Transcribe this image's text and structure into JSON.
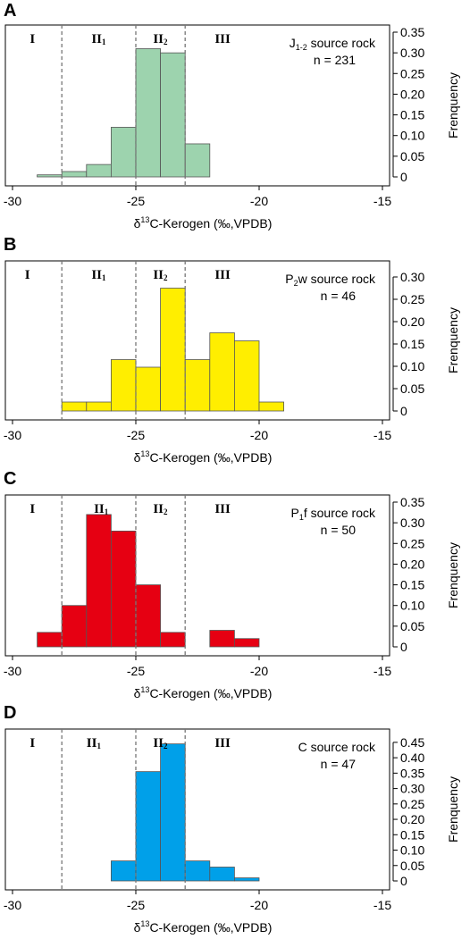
{
  "chart_data": [
    {
      "panel": "A",
      "type": "bar",
      "label_main": "J",
      "label_sub": "1-2",
      "label_rest": " source rock",
      "n_label": "n = 231",
      "color": "#9dd3ae",
      "bin_edges": [
        -29,
        -28,
        -27,
        -26,
        -25,
        -24,
        -23,
        -22
      ],
      "values": [
        0.005,
        0.013,
        0.03,
        0.12,
        0.31,
        0.3,
        0.08
      ],
      "xlim": [
        -30,
        -15
      ],
      "xticks": [
        -30,
        -25,
        -20,
        -15
      ],
      "ylim": [
        0,
        0.35
      ],
      "yticks": [
        0,
        0.05,
        0.1,
        0.15,
        0.2,
        0.25,
        0.3,
        0.35
      ],
      "ytick_labels": [
        "0",
        "0.05",
        "0.10",
        "0.15",
        "0.20",
        "0.25",
        "0.30",
        "0.35"
      ],
      "xlabel": "δ13C-Kerogen (‰,VPDB)",
      "ylabel": "Frenquency",
      "zone_boundaries": [
        -28,
        -25,
        -23
      ],
      "zone_labels": [
        {
          "text": "I",
          "sub": "",
          "x": -29.3
        },
        {
          "text": "II",
          "sub": "1",
          "x": -26.8
        },
        {
          "text": "II",
          "sub": "2",
          "x": -24.3
        },
        {
          "text": "III",
          "sub": "",
          "x": -21.8
        }
      ]
    },
    {
      "panel": "B",
      "type": "bar",
      "label_main": "P",
      "label_sub": "2",
      "label_rest": "w source rock",
      "n_label": "n = 46",
      "color": "#ffee00",
      "bin_edges": [
        -28,
        -27,
        -26,
        -25,
        -24,
        -23,
        -22,
        -21,
        -20,
        -19
      ],
      "values": [
        0.02,
        0.02,
        0.115,
        0.098,
        0.275,
        0.115,
        0.175,
        0.157,
        0.02
      ],
      "xlim": [
        -30,
        -15
      ],
      "xticks": [
        -30,
        -25,
        -20,
        -15
      ],
      "ylim": [
        0,
        0.32
      ],
      "yticks": [
        0,
        0.05,
        0.1,
        0.15,
        0.2,
        0.25,
        0.3
      ],
      "ytick_labels": [
        "0",
        "0.05",
        "0.10",
        "0.15",
        "0.20",
        "0.25",
        "0.30"
      ],
      "xlabel": "δ13C-Kerogen (‰,VPDB)",
      "ylabel": "Frenquency",
      "zone_boundaries": [
        -28,
        -25,
        -23
      ],
      "zone_labels": [
        {
          "text": "I",
          "sub": "",
          "x": -29.5
        },
        {
          "text": "II",
          "sub": "1",
          "x": -26.8
        },
        {
          "text": "II",
          "sub": "2",
          "x": -24.3
        },
        {
          "text": "III",
          "sub": "",
          "x": -21.8
        }
      ]
    },
    {
      "panel": "C",
      "type": "bar",
      "label_main": "P",
      "label_sub": "1",
      "label_rest": "f source rock",
      "n_label": "n = 50",
      "color": "#e60012",
      "bin_edges": [
        -29,
        -28,
        -27,
        -26,
        -25,
        -24,
        -23,
        -22,
        -21,
        -20
      ],
      "values": [
        0.035,
        0.1,
        0.32,
        0.28,
        0.15,
        0.035,
        0,
        0.04,
        0.02
      ],
      "xlim": [
        -30,
        -15
      ],
      "xticks": [
        -30,
        -25,
        -20,
        -15
      ],
      "ylim": [
        0,
        0.35
      ],
      "yticks": [
        0,
        0.05,
        0.1,
        0.15,
        0.2,
        0.25,
        0.3,
        0.35
      ],
      "ytick_labels": [
        "0",
        "0.05",
        "0.10",
        "0.15",
        "0.20",
        "0.25",
        "0.30",
        "0.35"
      ],
      "xlabel": "δ13C-Kerogen (‰,VPDB)",
      "ylabel": "Frenquency",
      "zone_boundaries": [
        -28,
        -25,
        -23
      ],
      "zone_labels": [
        {
          "text": "I",
          "sub": "",
          "x": -29.3
        },
        {
          "text": "II",
          "sub": "1",
          "x": -26.7
        },
        {
          "text": "II",
          "sub": "2",
          "x": -24.3
        },
        {
          "text": "III",
          "sub": "",
          "x": -21.8
        }
      ]
    },
    {
      "panel": "D",
      "type": "bar",
      "label_main": "C source rock",
      "label_sub": "",
      "label_rest": "",
      "n_label": "n = 47",
      "color": "#00a0e9",
      "bin_edges": [
        -26,
        -25,
        -24,
        -23,
        -22,
        -21,
        -20
      ],
      "values": [
        0.065,
        0.355,
        0.445,
        0.065,
        0.045,
        0.01
      ],
      "xlim": [
        -30,
        -15
      ],
      "xticks": [
        -30,
        -25,
        -20,
        -15
      ],
      "ylim": [
        0,
        0.47
      ],
      "yticks": [
        0,
        0.05,
        0.1,
        0.15,
        0.2,
        0.25,
        0.3,
        0.35,
        0.4,
        0.45
      ],
      "ytick_labels": [
        "0",
        "0.05",
        "0.10",
        "0.15",
        "0.20",
        "0.25",
        "0.30",
        "0.35",
        "0.40",
        "0.45"
      ],
      "xlabel": "δ13C-Kerogen (‰,VPDB)",
      "ylabel": "Frenquency",
      "zone_boundaries": [
        -28,
        -25,
        -23
      ],
      "zone_labels": [
        {
          "text": "I",
          "sub": "",
          "x": -29.3
        },
        {
          "text": "II",
          "sub": "1",
          "x": -27.0
        },
        {
          "text": "II",
          "sub": "2",
          "x": -24.3
        },
        {
          "text": "III",
          "sub": "",
          "x": -21.8
        }
      ]
    }
  ]
}
